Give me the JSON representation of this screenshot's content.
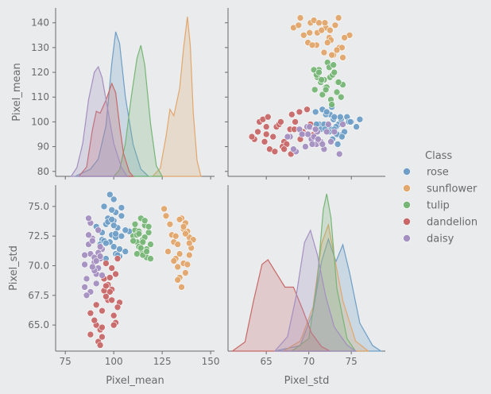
{
  "chart_data": {
    "type": "pairplot",
    "variables": [
      "Pixel_mean",
      "Pixel_std"
    ],
    "axis_labels": {
      "x": [
        "Pixel_mean",
        "Pixel_std"
      ],
      "y": [
        "Pixel_mean",
        "Pixel_std"
      ]
    },
    "ticks": {
      "mean_x": [
        "75",
        "100",
        "125",
        "150"
      ],
      "mean_y": [
        "80",
        "90",
        "100",
        "110",
        "120",
        "130",
        "140"
      ],
      "std_x": [
        "65",
        "70",
        "75"
      ],
      "std_y": [
        "65.0",
        "67.5",
        "70.0",
        "72.5",
        "75.0"
      ]
    },
    "ranges": {
      "mean": [
        70,
        152
      ],
      "mean_y": [
        78,
        146
      ],
      "std": [
        60.5,
        79
      ],
      "std_y": [
        62.8,
        76.8
      ]
    },
    "legend": {
      "title": "Class",
      "placement": "right"
    },
    "series": [
      {
        "name": "rose",
        "color": "#6f9ec6",
        "mean_center": 103,
        "mean_sd": 4,
        "std_center": 72.2,
        "std_sd": 1.3,
        "kde_mean": [
          [
            80,
            0
          ],
          [
            88,
            0.05
          ],
          [
            92,
            0.12
          ],
          [
            96,
            0.35
          ],
          [
            99,
            0.78
          ],
          [
            101,
            1.0
          ],
          [
            103,
            0.92
          ],
          [
            106,
            0.55
          ],
          [
            110,
            0.22
          ],
          [
            114,
            0.05
          ],
          [
            118,
            0
          ]
        ],
        "kde_std": [
          [
            66,
            0
          ],
          [
            69,
            0.05
          ],
          [
            70.5,
            0.35
          ],
          [
            71.5,
            0.8
          ],
          [
            72.3,
            1.0
          ],
          [
            73.2,
            0.8
          ],
          [
            74,
            0.95
          ],
          [
            74.8,
            0.7
          ],
          [
            76,
            0.25
          ],
          [
            77.5,
            0.05
          ],
          [
            78.5,
            0
          ]
        ],
        "points": [
          [
            101,
            102,
            74.5
          ],
          [
            96,
            99,
            73.5
          ],
          [
            94,
            98,
            72.2
          ],
          [
            100,
            101,
            73.8
          ],
          [
            104,
            103,
            72.5
          ],
          [
            106,
            99,
            71.2
          ],
          [
            99,
            97,
            72.6
          ],
          [
            97,
            95,
            74.0
          ],
          [
            101,
            93,
            71.0
          ],
          [
            103,
            104,
            70.8
          ],
          [
            95,
            100,
            75.0
          ],
          [
            102,
            98,
            73.2
          ],
          [
            98,
            103,
            72.0
          ],
          [
            104,
            96,
            74.2
          ],
          [
            92,
            97,
            73.0
          ],
          [
            100,
            105,
            71.6
          ],
          [
            96,
            94,
            70.6
          ],
          [
            108,
            101,
            72.9
          ],
          [
            93,
            99,
            71.8
          ],
          [
            99,
            100,
            74.7
          ],
          [
            101,
            96,
            72.4
          ],
          [
            97,
            102,
            73.7
          ],
          [
            103,
            97,
            71.4
          ],
          [
            94,
            93,
            72.8
          ],
          [
            100,
            98,
            75.6
          ],
          [
            98,
            101,
            76.0
          ],
          [
            91,
            95,
            73.3
          ],
          [
            106,
            102,
            73.0
          ],
          [
            95,
            104,
            72.1
          ],
          [
            102,
            99,
            70.9
          ],
          [
            99,
            94,
            73.9
          ],
          [
            104,
            100,
            74.9
          ],
          [
            96,
            97,
            71.9
          ],
          [
            101,
            106,
            72.7
          ],
          [
            100,
            91,
            73.4
          ]
        ]
      },
      {
        "name": "sunflower",
        "color": "#e1a76c",
        "mean_center": 133,
        "mean_sd": 6,
        "std_center": 71.8,
        "std_sd": 1.5,
        "kde_mean": [
          [
            120,
            0
          ],
          [
            124,
            0.05
          ],
          [
            127,
            0.25
          ],
          [
            129,
            0.42
          ],
          [
            131,
            0.38
          ],
          [
            134,
            0.55
          ],
          [
            136,
            0.8
          ],
          [
            138,
            1.0
          ],
          [
            139.5,
            0.82
          ],
          [
            141,
            0.4
          ],
          [
            143,
            0.1
          ],
          [
            145,
            0
          ]
        ],
        "kde_std": [
          [
            67,
            0
          ],
          [
            69,
            0.08
          ],
          [
            70.5,
            0.35
          ],
          [
            71.5,
            0.85
          ],
          [
            72.3,
            1.0
          ],
          [
            73,
            0.75
          ],
          [
            74,
            0.4
          ],
          [
            75.5,
            0.08
          ],
          [
            77,
            0
          ]
        ],
        "points": [
          [
            126,
            135,
            74.8
          ],
          [
            129,
            142,
            73.5
          ],
          [
            131,
            138,
            72.0
          ],
          [
            134,
            136,
            71.0
          ],
          [
            137,
            130,
            73.6
          ],
          [
            139,
            134,
            72.4
          ],
          [
            136,
            140,
            70.2
          ],
          [
            133,
            132,
            69.9
          ],
          [
            138,
            127,
            72.9
          ],
          [
            140,
            137,
            71.5
          ],
          [
            135,
            126,
            74.0
          ],
          [
            132,
            141,
            70.6
          ],
          [
            130,
            133,
            72.6
          ],
          [
            136,
            139,
            73.1
          ],
          [
            139,
            131,
            70.9
          ],
          [
            133,
            128,
            71.8
          ],
          [
            137,
            135,
            69.4
          ],
          [
            135,
            138,
            68.2
          ],
          [
            141,
            132,
            72.2
          ],
          [
            128,
            140,
            71.2
          ],
          [
            134,
            130,
            73.9
          ],
          [
            138,
            136,
            70.1
          ],
          [
            132,
            137,
            72.5
          ],
          [
            127,
            134,
            74.2
          ],
          [
            136,
            129,
            73.3
          ],
          [
            139,
            140,
            71.9
          ],
          [
            131,
            131,
            70.4
          ],
          [
            134,
            142,
            69.0
          ],
          [
            137,
            127,
            72.7
          ],
          [
            133,
            139,
            68.8
          ]
        ]
      },
      {
        "name": "tulip",
        "color": "#77b577",
        "mean_center": 114,
        "mean_sd": 3,
        "std_center": 72.1,
        "std_sd": 0.9,
        "kde_mean": [
          [
            100,
            0
          ],
          [
            103,
            0.05
          ],
          [
            106,
            0.25
          ],
          [
            109,
            0.6
          ],
          [
            112,
            0.9
          ],
          [
            114,
            1.0
          ],
          [
            116,
            0.85
          ],
          [
            119,
            0.4
          ],
          [
            122,
            0.08
          ],
          [
            125,
            0
          ]
        ],
        "kde_std": [
          [
            68,
            0
          ],
          [
            70,
            0.08
          ],
          [
            71,
            0.45
          ],
          [
            71.7,
            0.9
          ],
          [
            72.1,
            1.0
          ],
          [
            72.6,
            0.85
          ],
          [
            73.3,
            0.4
          ],
          [
            74.5,
            0.08
          ],
          [
            75.5,
            0
          ]
        ],
        "points": [
          [
            110,
            118,
            72.5
          ],
          [
            112,
            114,
            72.0
          ],
          [
            114,
            121,
            71.2
          ],
          [
            116,
            116,
            73.4
          ],
          [
            118,
            119,
            72.8
          ],
          [
            113,
            111,
            71.6
          ],
          [
            115,
            124,
            72.2
          ],
          [
            117,
            113,
            70.7
          ],
          [
            111,
            120,
            73.0
          ],
          [
            119,
            117,
            71.8
          ],
          [
            114,
            115,
            74.0
          ],
          [
            116,
            122,
            72.4
          ],
          [
            112,
            118,
            71.0
          ],
          [
            118,
            112,
            73.3
          ],
          [
            115,
            119,
            70.9
          ],
          [
            113,
            123,
            72.9
          ],
          [
            117,
            116,
            71.4
          ],
          [
            110,
            114,
            72.1
          ],
          [
            116,
            110,
            73.8
          ],
          [
            114,
            117,
            71.5
          ],
          [
            112,
            109,
            72.6
          ],
          [
            119,
            121,
            70.6
          ],
          [
            115,
            113,
            72.0
          ],
          [
            111,
            116,
            73.5
          ],
          [
            117,
            120,
            71.2
          ],
          [
            113,
            107,
            72.7
          ]
        ]
      },
      {
        "name": "dandelion",
        "color": "#c86868",
        "mean_center": 95,
        "mean_sd": 5,
        "std_center": 66,
        "std_sd": 2,
        "kde_mean": [
          [
            82,
            0
          ],
          [
            86,
            0.1
          ],
          [
            89,
            0.5
          ],
          [
            91,
            0.7
          ],
          [
            93,
            0.68
          ],
          [
            96,
            0.82
          ],
          [
            99,
            1.0
          ],
          [
            101,
            0.9
          ],
          [
            103,
            0.55
          ],
          [
            105,
            0.25
          ],
          [
            108,
            0.05
          ],
          [
            110,
            0
          ]
        ],
        "kde_std": [
          [
            61,
            0
          ],
          [
            62.5,
            0.1
          ],
          [
            63.5,
            0.55
          ],
          [
            64.5,
            0.95
          ],
          [
            65.2,
            1.0
          ],
          [
            66.2,
            0.85
          ],
          [
            67.2,
            0.7
          ],
          [
            68.2,
            0.7
          ],
          [
            69.3,
            0.45
          ],
          [
            70.3,
            0.2
          ],
          [
            71.5,
            0.05
          ],
          [
            72.5,
            0
          ]
        ],
        "points": [
          [
            88,
            100,
            64.2
          ],
          [
            91,
            95,
            65.0
          ],
          [
            94,
            98,
            66.2
          ],
          [
            97,
            92,
            67.1
          ],
          [
            99,
            103,
            68.0
          ],
          [
            101,
            96,
            69.3
          ],
          [
            96,
            99,
            70.2
          ],
          [
            93,
            101,
            64.6
          ],
          [
            100,
            94,
            65.8
          ],
          [
            103,
            90,
            66.9
          ],
          [
            98,
            97,
            67.8
          ],
          [
            95,
            104,
            68.9
          ],
          [
            92,
            93,
            63.6
          ],
          [
            90,
            89,
            65.4
          ],
          [
            102,
            99,
            66.5
          ],
          [
            99,
            105,
            69.8
          ],
          [
            96,
            91,
            67.4
          ],
          [
            94,
            96,
            64.0
          ],
          [
            101,
            102,
            65.2
          ],
          [
            97,
            100,
            68.4
          ],
          [
            88,
            88,
            66.0
          ],
          [
            93,
            94,
            63.3
          ],
          [
            95,
            87,
            67.9
          ],
          [
            98,
            93,
            69.0
          ],
          [
            100,
            98,
            65.0
          ],
          [
            102,
            95,
            70.6
          ],
          [
            91,
            100,
            66.7
          ],
          [
            96,
            97,
            68.3
          ],
          [
            94,
            92,
            64.8
          ],
          [
            99,
            89,
            67.1
          ]
        ]
      },
      {
        "name": "daisy",
        "color": "#a48fc0",
        "mean_center": 93,
        "mean_sd": 4,
        "std_center": 70.2,
        "std_sd": 1.3,
        "kde_mean": [
          [
            78,
            0
          ],
          [
            81,
            0.08
          ],
          [
            84,
            0.3
          ],
          [
            87,
            0.7
          ],
          [
            90,
            0.95
          ],
          [
            92,
            1.0
          ],
          [
            94,
            0.9
          ],
          [
            97,
            0.6
          ],
          [
            100,
            0.3
          ],
          [
            104,
            0.08
          ],
          [
            107,
            0
          ]
        ],
        "kde_std": [
          [
            66,
            0
          ],
          [
            67.5,
            0.12
          ],
          [
            68.5,
            0.45
          ],
          [
            69.5,
            0.9
          ],
          [
            70.2,
            1.0
          ],
          [
            71,
            0.8
          ],
          [
            72,
            0.45
          ],
          [
            73,
            0.2
          ],
          [
            74.5,
            0.05
          ],
          [
            75.5,
            0
          ]
        ],
        "points": [
          [
            88,
            96,
            71.0
          ],
          [
            90,
            93,
            70.3
          ],
          [
            92,
            98,
            69.8
          ],
          [
            85,
            91,
            70.9
          ],
          [
            87,
            89,
            71.8
          ],
          [
            91,
            95,
            69.3
          ],
          [
            89,
            99,
            72.3
          ],
          [
            93,
            94,
            70.6
          ],
          [
            86,
            97,
            68.9
          ],
          [
            90,
            90,
            69.6
          ],
          [
            94,
            92,
            71.4
          ],
          [
            88,
            94,
            67.8
          ],
          [
            92,
            96,
            73.0
          ],
          [
            85,
            98,
            70.1
          ],
          [
            87,
            92,
            72.6
          ],
          [
            91,
            88,
            68.5
          ],
          [
            89,
            95,
            69.9
          ],
          [
            93,
            91,
            71.6
          ],
          [
            86,
            94,
            67.5
          ],
          [
            90,
            97,
            70.7
          ],
          [
            88,
            87,
            73.6
          ],
          [
            92,
            93,
            71.1
          ],
          [
            94,
            95,
            69.2
          ],
          [
            87,
            99,
            74.0
          ],
          [
            91,
            91,
            70.4
          ],
          [
            85,
            89,
            68.2
          ],
          [
            89,
            96,
            72.1
          ],
          [
            93,
            97,
            70.8
          ]
        ]
      }
    ]
  }
}
